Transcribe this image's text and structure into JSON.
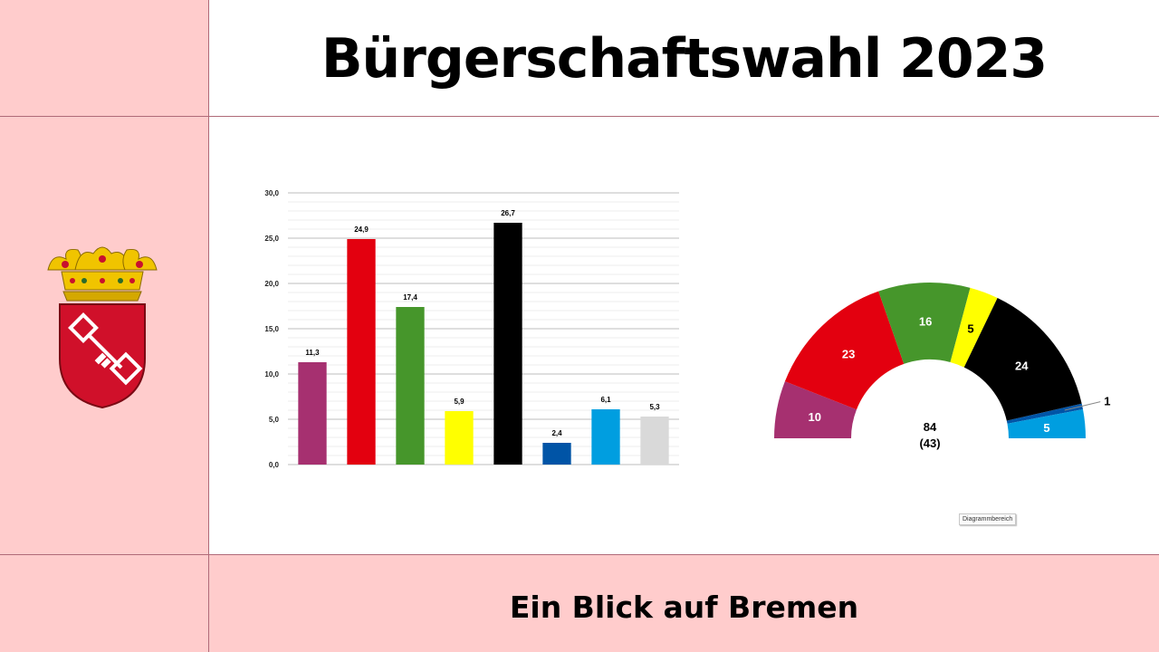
{
  "page": {
    "title": "Bürgerschaftswahl 2023",
    "subtitle": "Ein Blick auf Bremen",
    "chart_area_label": "Diagrammbereich",
    "background_color": "#ffcccc",
    "crest_icon": "bremen-coat-of-arms-icon"
  },
  "chart_data": [
    {
      "type": "bar",
      "title": "",
      "xlabel": "",
      "ylabel": "",
      "ylim": [
        0,
        30
      ],
      "yticks": [
        "0,0",
        "5,0",
        "10,0",
        "15,0",
        "20,0",
        "25,0",
        "30,0"
      ],
      "grid": true,
      "values": [
        11.3,
        24.9,
        17.4,
        5.9,
        26.7,
        2.4,
        6.1,
        5.3
      ],
      "labels": [
        "11,3",
        "24,9",
        "17,4",
        "5,9",
        "26,7",
        "2,4",
        "6,1",
        "5,3"
      ],
      "colors": [
        "#a63070",
        "#e3000f",
        "#46962b",
        "#ffff00",
        "#000000",
        "#0054a6",
        "#009ee0",
        "#d9d9d9"
      ]
    },
    {
      "type": "pie",
      "shape": "half-donut",
      "values": [
        10,
        23,
        16,
        5,
        24,
        1,
        5
      ],
      "labels": [
        "10",
        "23",
        "16",
        "5",
        "24",
        "1",
        "5"
      ],
      "colors": [
        "#a63070",
        "#e3000f",
        "#46962b",
        "#ffff00",
        "#000000",
        "#0054a6",
        "#009ee0"
      ],
      "label_colors": [
        "#ffffff",
        "#ffffff",
        "#ffffff",
        "#000000",
        "#ffffff",
        "#000000",
        "#ffffff"
      ],
      "center_total": "84",
      "center_majority": "(43)"
    }
  ]
}
